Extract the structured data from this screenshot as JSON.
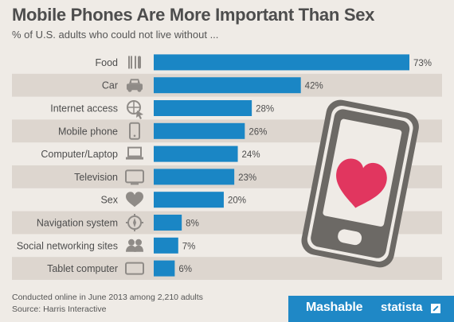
{
  "colors": {
    "bar": "#1a86c5",
    "band": "#ddd6cf",
    "text": "#4d4d4d",
    "icon": "#8f8b87",
    "phone": "#6c6965",
    "heart": "#e1365f",
    "brand_blue": "#1f88c6"
  },
  "chart_data": {
    "type": "bar",
    "title": "Mobile Phones Are More Important Than Sex",
    "subtitle": "% of U.S. adults who could not live without ...",
    "categories": [
      "Food",
      "Car",
      "Internet access",
      "Mobile phone",
      "Computer/Laptop",
      "Television",
      "Sex",
      "Navigation system",
      "Social networking sites",
      "Tablet computer"
    ],
    "values": [
      73,
      42,
      28,
      26,
      24,
      23,
      20,
      8,
      7,
      6
    ],
    "value_labels": [
      "73%",
      "42%",
      "28%",
      "26%",
      "24%",
      "23%",
      "20%",
      "8%",
      "7%",
      "6%"
    ],
    "icons": [
      "fork-knife-icon",
      "car-icon",
      "globe-cursor-icon",
      "mobile-phone-icon",
      "laptop-icon",
      "television-icon",
      "heart-icon",
      "compass-icon",
      "people-icon",
      "tablet-icon"
    ],
    "orientation": "horizontal",
    "xlim": [
      0,
      73
    ],
    "grid": false,
    "legend": "none"
  },
  "footer": {
    "note": "Conducted online in June 2013 among 2,210 adults",
    "source": "Source: Harris Interactive",
    "brand_left": "Mashable",
    "brand_right": "statista"
  },
  "illustration": "phone-with-heart"
}
